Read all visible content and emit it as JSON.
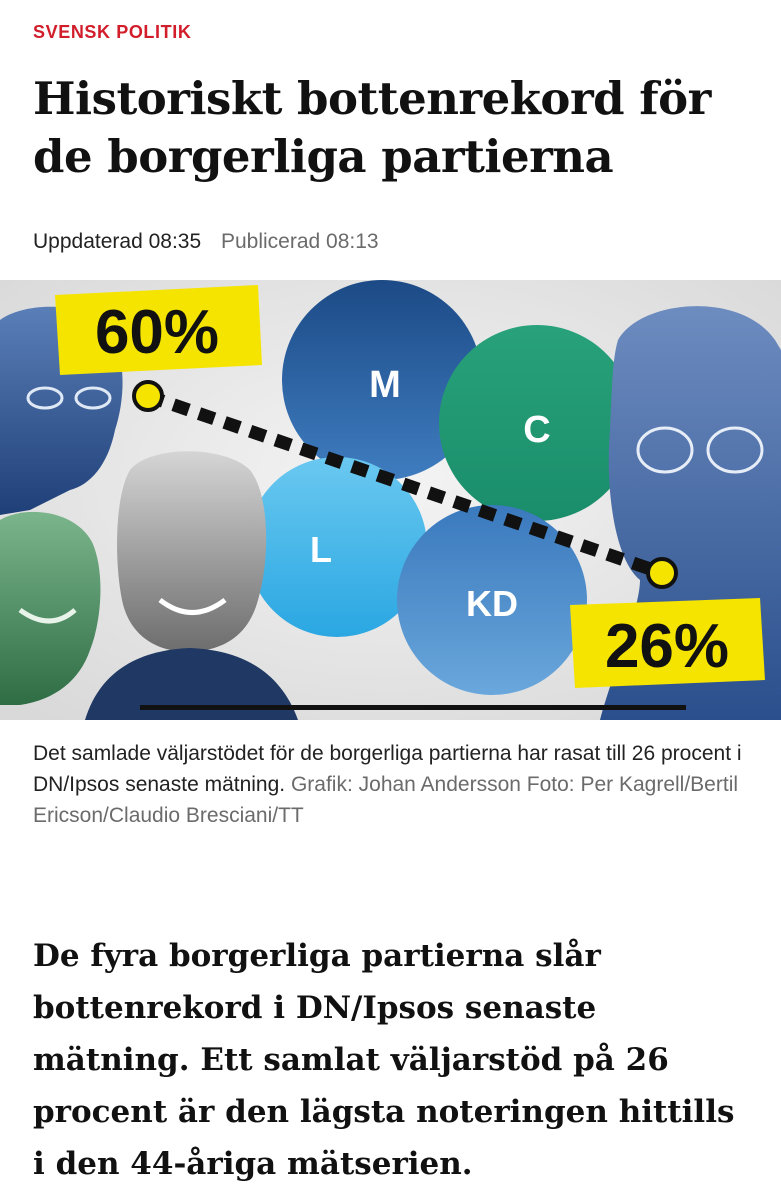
{
  "article": {
    "section": "SVENSK POLITIK",
    "headline": "Historiskt bottenrekord för de borgerliga partierna",
    "updated": "Uppdaterad 08:35",
    "published": "Publicerad 08:13",
    "caption_text": "Det samlade väljarstödet för de borgerliga partierna har rasat till 26 procent i DN/Ipsos senaste mätning.",
    "caption_credit": "Grafik: Johan Andersson Foto: Per Kagrell/Bertil Ericson/Claudio Bresciani/TT",
    "lead": "De fyra borgerliga partierna slår bottenrekord i DN/Ipsos senaste mätning. Ett samlat väljarstöd på 26 procent är den lägsta noteringen hittills i den 44-åriga mätserien."
  },
  "graphic": {
    "start_label": "60%",
    "end_label": "26%",
    "parties": {
      "m": "M",
      "c": "C",
      "l": "L",
      "kd": "KD"
    },
    "colors": {
      "accent": "#d21d2b",
      "highlight": "#f5e400",
      "m": "#1f4f8f",
      "c": "#1f9e76",
      "l": "#43b4e8",
      "kd": "#3d7fc1"
    }
  }
}
